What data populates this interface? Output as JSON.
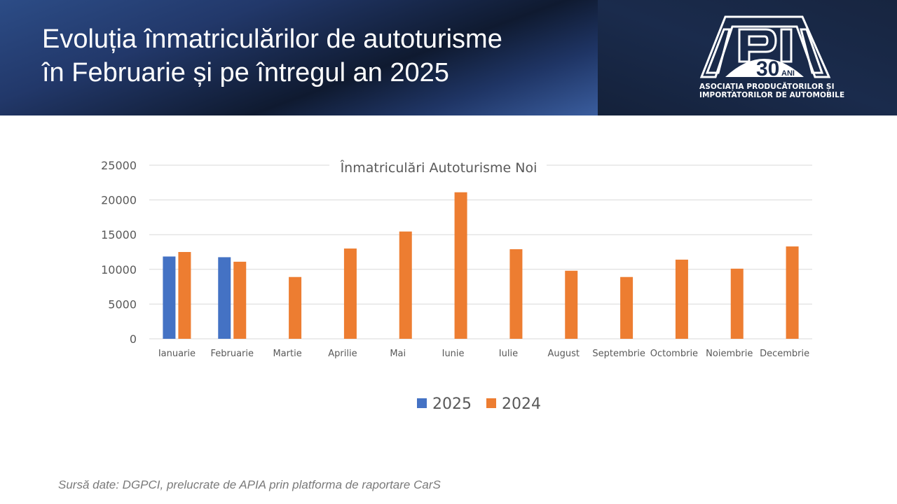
{
  "header": {
    "title_line1": "Evoluția înmatriculărilor de autoturisme",
    "title_line2": "în Februarie și pe întregul an 2025",
    "logo": {
      "wordmark": "APIA",
      "anniversary_number": "30",
      "anniversary_label": "ANI",
      "subtitle_line1": "ASOCIAȚIA PRODUCĂTORILOR ȘI",
      "subtitle_line2": "IMPORTATORILOR DE AUTOMOBILE"
    }
  },
  "chart_data": {
    "type": "bar",
    "title": "Înmatriculări Autoturisme Noi",
    "xlabel": "",
    "ylabel": "",
    "ylim": [
      0,
      25000
    ],
    "yticks": [
      0,
      5000,
      10000,
      15000,
      20000,
      25000
    ],
    "grid": true,
    "legend_position": "bottom",
    "categories": [
      "Ianuarie",
      "Februarie",
      "Martie",
      "Aprilie",
      "Mai",
      "Iunie",
      "Iulie",
      "August",
      "Septembrie",
      "Octombrie",
      "Noiembrie",
      "Decembrie"
    ],
    "series": [
      {
        "name": "2025",
        "color": "#4472c4",
        "values": [
          11850,
          11750,
          null,
          null,
          null,
          null,
          null,
          null,
          null,
          null,
          null,
          null
        ]
      },
      {
        "name": "2024",
        "color": "#ed7d31",
        "values": [
          12500,
          11100,
          8900,
          13000,
          15450,
          21100,
          12900,
          9800,
          8900,
          11400,
          10100,
          13300
        ]
      }
    ]
  },
  "footer": {
    "source": "Sursă date: DGPCI, prelucrate de APIA prin platforma de raportare CarS"
  }
}
